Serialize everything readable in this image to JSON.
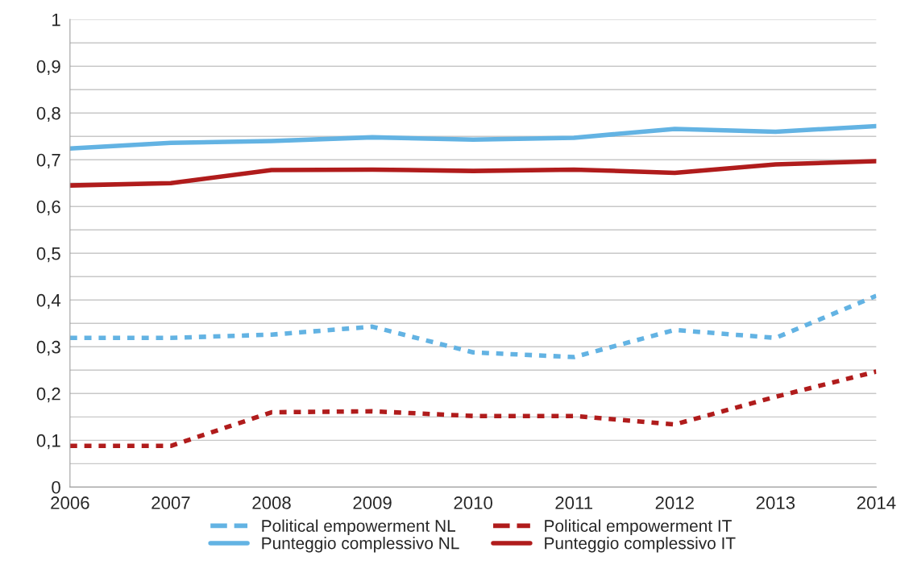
{
  "chart_data": {
    "type": "line",
    "x": [
      2006,
      2007,
      2008,
      2009,
      2010,
      2011,
      2012,
      2013,
      2014
    ],
    "series": [
      {
        "name": "Political empowerment NL",
        "color": "#63b3e3",
        "line_style": "dashed",
        "values": [
          0.319,
          0.319,
          0.326,
          0.343,
          0.288,
          0.278,
          0.336,
          0.319,
          0.409
        ]
      },
      {
        "name": "Punteggio complessivo NL",
        "color": "#63b3e3",
        "line_style": "solid",
        "values": [
          0.724,
          0.736,
          0.74,
          0.748,
          0.743,
          0.747,
          0.766,
          0.76,
          0.772
        ]
      },
      {
        "name": "Political empowerment IT",
        "color": "#b01c1c",
        "line_style": "dashed",
        "values": [
          0.088,
          0.088,
          0.16,
          0.162,
          0.152,
          0.152,
          0.134,
          0.193,
          0.247
        ]
      },
      {
        "name": "Punteggio complessivo IT",
        "color": "#b01c1c",
        "line_style": "solid",
        "values": [
          0.645,
          0.65,
          0.678,
          0.679,
          0.676,
          0.679,
          0.672,
          0.69,
          0.697
        ]
      }
    ],
    "xlim": [
      2006,
      2014
    ],
    "xticks": [
      2006,
      2007,
      2008,
      2009,
      2010,
      2011,
      2012,
      2013,
      2014
    ],
    "ylim": [
      0,
      1
    ],
    "yticks": [
      0,
      {
        "value": 0.05,
        "label": null
      },
      {
        "value": 0.1,
        "label": "0,1"
      },
      {
        "value": 0.15,
        "label": null
      },
      {
        "value": 0.2,
        "label": "0,2"
      },
      {
        "value": 0.25,
        "label": null
      },
      {
        "value": 0.3,
        "label": "0,3"
      },
      {
        "value": 0.35,
        "label": null
      },
      {
        "value": 0.4,
        "label": "0,4"
      },
      {
        "value": 0.45,
        "label": null
      },
      {
        "value": 0.5,
        "label": "0,5"
      },
      {
        "value": 0.55,
        "label": null
      },
      {
        "value": 0.6,
        "label": "0,6"
      },
      {
        "value": 0.65,
        "label": null
      },
      {
        "value": 0.7,
        "label": "0,7"
      },
      {
        "value": 0.75,
        "label": null
      },
      {
        "value": 0.8,
        "label": "0,8"
      },
      {
        "value": 0.85,
        "label": null
      },
      {
        "value": 0.9,
        "label": "0,9"
      },
      {
        "value": 0.95,
        "label": null
      },
      1
    ],
    "grid": "y",
    "legend": "bottom"
  }
}
